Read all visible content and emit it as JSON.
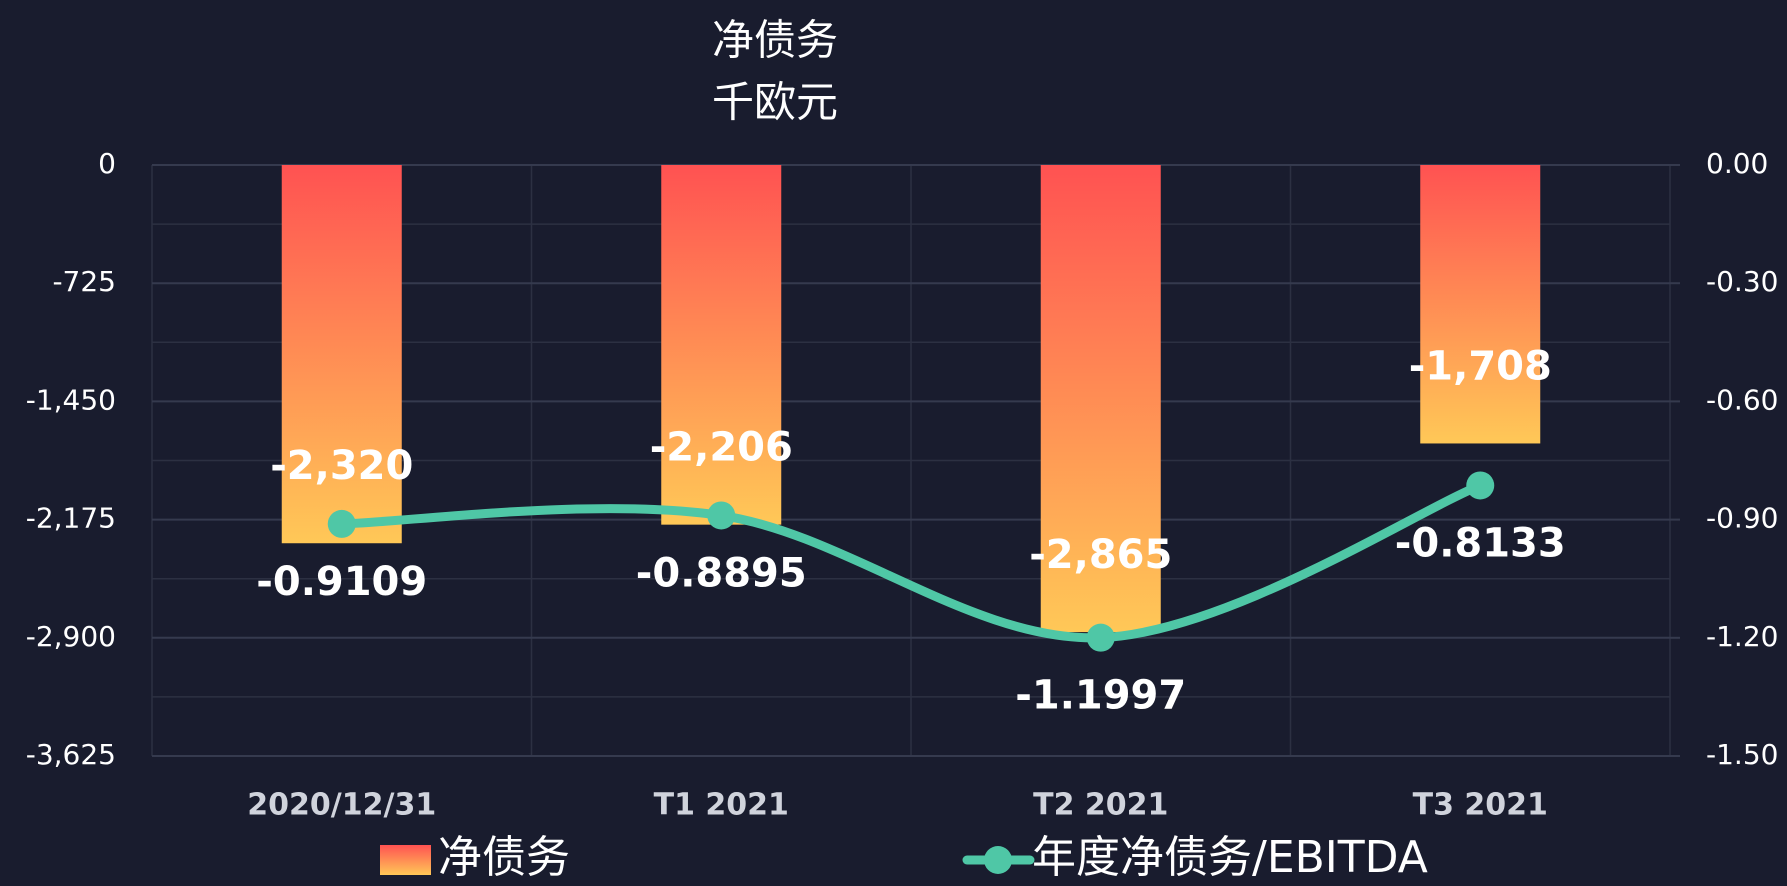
{
  "chart_data": {
    "type": "bar",
    "title": "净债务",
    "subtitle": "千欧元",
    "categories": [
      "2020/12/31",
      "T1 2021",
      "T2 2021",
      "T3 2021"
    ],
    "series": [
      {
        "name": "净债务",
        "type": "bar",
        "color": "#ff5252",
        "color2": "#ffc857",
        "values": [
          -2320,
          -2206,
          -2865,
          -1708
        ],
        "value_labels": [
          "-2,320",
          "-2,206",
          "-2,865",
          "-1,708"
        ]
      },
      {
        "name": "年度净债务/EBITDA",
        "type": "line",
        "axis": "y2",
        "color": "#4fc7a6",
        "values": [
          -0.9109,
          -0.8895,
          -1.1997,
          -0.8133
        ]
      }
    ],
    "ylim": [
      -3625,
      0
    ],
    "yticks": [
      {
        "value": 0,
        "label": "0"
      },
      {
        "value": -725,
        "label": "-725"
      },
      {
        "value": -1450,
        "label": "-1,450"
      },
      {
        "value": -2175,
        "label": "-2,175"
      },
      {
        "value": -2900,
        "label": "-2,900"
      },
      {
        "value": -3625,
        "label": "-3,625"
      }
    ],
    "y2lim": [
      -1.5,
      0
    ],
    "y2ticks": [
      {
        "value": 0,
        "label": "0.00"
      },
      {
        "value": -0.3,
        "label": "-0.30"
      },
      {
        "value": -0.6,
        "label": "-0.60"
      },
      {
        "value": -0.9,
        "label": "-0.90"
      },
      {
        "value": -1.2,
        "label": "-1.20"
      },
      {
        "value": -1.5,
        "label": "-1.50"
      }
    ],
    "grid": true,
    "legend": "bottom"
  }
}
